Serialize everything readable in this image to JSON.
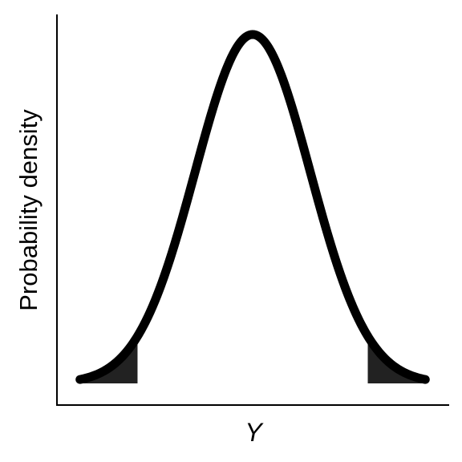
{
  "chart_data": {
    "type": "area",
    "distribution": "normal",
    "mean": 0,
    "sd": 1,
    "xlim": [
      -3.4,
      3.4
    ],
    "curve_range": [
      -3.0,
      3.0
    ],
    "shaded_tails": [
      {
        "from": -3.0,
        "to": -2.0
      },
      {
        "from": 2.0,
        "to": 3.0
      }
    ],
    "xlabel": "Y",
    "ylabel": "Probability density",
    "title": "",
    "ticks": false,
    "grid": false,
    "curve_color": "#000000",
    "shade_color": "#222222"
  }
}
